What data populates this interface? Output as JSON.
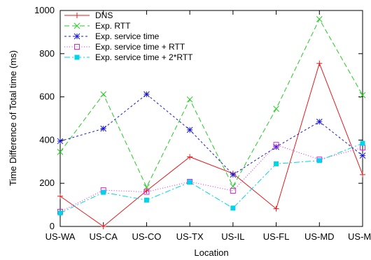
{
  "chart_data": {
    "type": "line",
    "title": "",
    "xlabel": "Location",
    "ylabel": "Time Difference of Total time (ms)",
    "categories": [
      "US-WA",
      "US-CA",
      "US-CO",
      "US-TX",
      "US-IL",
      "US-FL",
      "US-MD",
      "US-MA"
    ],
    "ylim": [
      0,
      1000
    ],
    "yticks": [
      "0",
      "200",
      "400",
      "600",
      "800",
      "1000"
    ],
    "grid": false,
    "legend_position": "top-left",
    "series": [
      {
        "name": "DNS",
        "color": "#e41a1c",
        "dash": "solid",
        "marker": "plus",
        "values": [
          140,
          0,
          165,
          322,
          245,
          82,
          755,
          240
        ]
      },
      {
        "name": "Exp. RTT",
        "color": "#22cc22",
        "dash": "long",
        "marker": "x",
        "values": [
          345,
          612,
          182,
          588,
          186,
          545,
          960,
          608
        ]
      },
      {
        "name": "Exp. service time",
        "color": "#1a1acc",
        "dash": "short",
        "marker": "star",
        "values": [
          395,
          453,
          612,
          447,
          240,
          368,
          485,
          328
        ]
      },
      {
        "name": "Exp. service time + RTT",
        "color": "#dd22dd",
        "dash": "dot",
        "marker": "open-square",
        "values": [
          68,
          168,
          160,
          207,
          165,
          378,
          310,
          365
        ]
      },
      {
        "name": "Exp. service time + 2*RTT",
        "color": "#00d4e8",
        "dash": "dashdot",
        "marker": "filled-square",
        "values": [
          62,
          158,
          122,
          205,
          85,
          290,
          305,
          385
        ]
      }
    ]
  }
}
